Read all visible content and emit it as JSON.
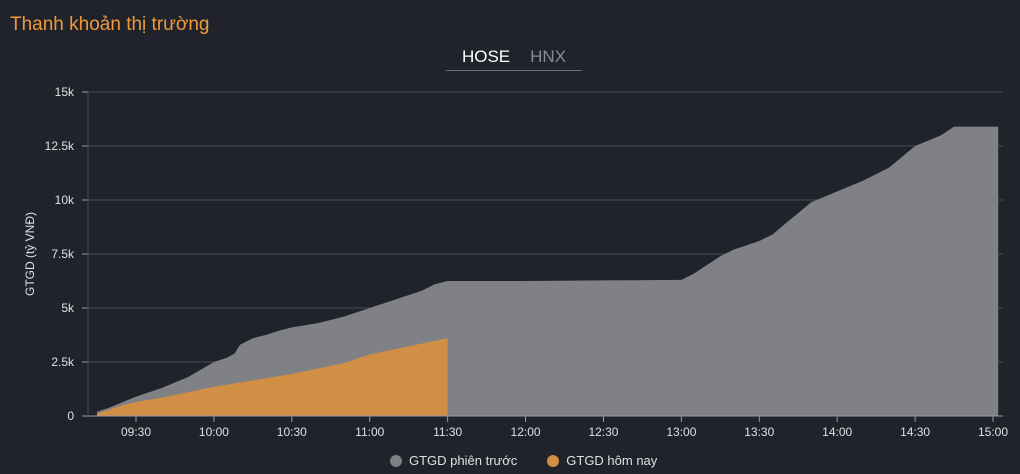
{
  "header": {
    "title": "Thanh khoản thị trường"
  },
  "tabs": [
    {
      "label": "HOSE",
      "active": true
    },
    {
      "label": "HNX",
      "active": false
    }
  ],
  "chart_data": {
    "type": "area",
    "title": "",
    "xlabel": "",
    "ylabel": "GTGD (tỷ VNĐ)",
    "ylim": [
      0,
      15000
    ],
    "xlim": [
      "09:15",
      "15:02"
    ],
    "grid": true,
    "legend_position": "bottom",
    "y_ticks": [
      0,
      2500,
      5000,
      7500,
      10000,
      12500,
      15000
    ],
    "y_tick_labels": [
      "0",
      "2.5k",
      "5k",
      "7.5k",
      "10k",
      "12.5k",
      "15k"
    ],
    "x_ticks": [
      "09:30",
      "10:00",
      "10:30",
      "11:00",
      "11:30",
      "12:00",
      "12:30",
      "13:00",
      "13:30",
      "14:00",
      "14:30",
      "15:00"
    ],
    "series": [
      {
        "name": "GTGD phiên trước",
        "color": "#808185",
        "points": [
          [
            "09:15",
            200
          ],
          [
            "09:20",
            400
          ],
          [
            "09:30",
            900
          ],
          [
            "09:40",
            1300
          ],
          [
            "09:50",
            1800
          ],
          [
            "10:00",
            2500
          ],
          [
            "10:05",
            2700
          ],
          [
            "10:08",
            2900
          ],
          [
            "10:10",
            3300
          ],
          [
            "10:15",
            3600
          ],
          [
            "10:20",
            3750
          ],
          [
            "10:25",
            3950
          ],
          [
            "10:30",
            4100
          ],
          [
            "10:40",
            4300
          ],
          [
            "10:50",
            4600
          ],
          [
            "11:00",
            5000
          ],
          [
            "11:10",
            5400
          ],
          [
            "11:20",
            5800
          ],
          [
            "11:25",
            6100
          ],
          [
            "11:30",
            6250
          ],
          [
            "12:00",
            6250
          ],
          [
            "12:30",
            6280
          ],
          [
            "13:00",
            6300
          ],
          [
            "13:05",
            6600
          ],
          [
            "13:10",
            7000
          ],
          [
            "13:15",
            7400
          ],
          [
            "13:20",
            7700
          ],
          [
            "13:30",
            8100
          ],
          [
            "13:35",
            8400
          ],
          [
            "13:40",
            8900
          ],
          [
            "13:45",
            9400
          ],
          [
            "13:50",
            9900
          ],
          [
            "14:00",
            10400
          ],
          [
            "14:10",
            10900
          ],
          [
            "14:20",
            11500
          ],
          [
            "14:25",
            12000
          ],
          [
            "14:30",
            12500
          ],
          [
            "14:40",
            13000
          ],
          [
            "14:45",
            13400
          ],
          [
            "15:02",
            13400
          ]
        ]
      },
      {
        "name": "GTGD hôm nay",
        "color": "#d18e45",
        "points": [
          [
            "09:15",
            100
          ],
          [
            "09:20",
            300
          ],
          [
            "09:25",
            500
          ],
          [
            "09:30",
            650
          ],
          [
            "09:40",
            850
          ],
          [
            "09:50",
            1100
          ],
          [
            "10:00",
            1350
          ],
          [
            "10:10",
            1550
          ],
          [
            "10:20",
            1750
          ],
          [
            "10:30",
            1950
          ],
          [
            "10:40",
            2200
          ],
          [
            "10:50",
            2450
          ],
          [
            "11:00",
            2850
          ],
          [
            "11:10",
            3100
          ],
          [
            "11:20",
            3350
          ],
          [
            "11:30",
            3600
          ]
        ]
      }
    ]
  }
}
